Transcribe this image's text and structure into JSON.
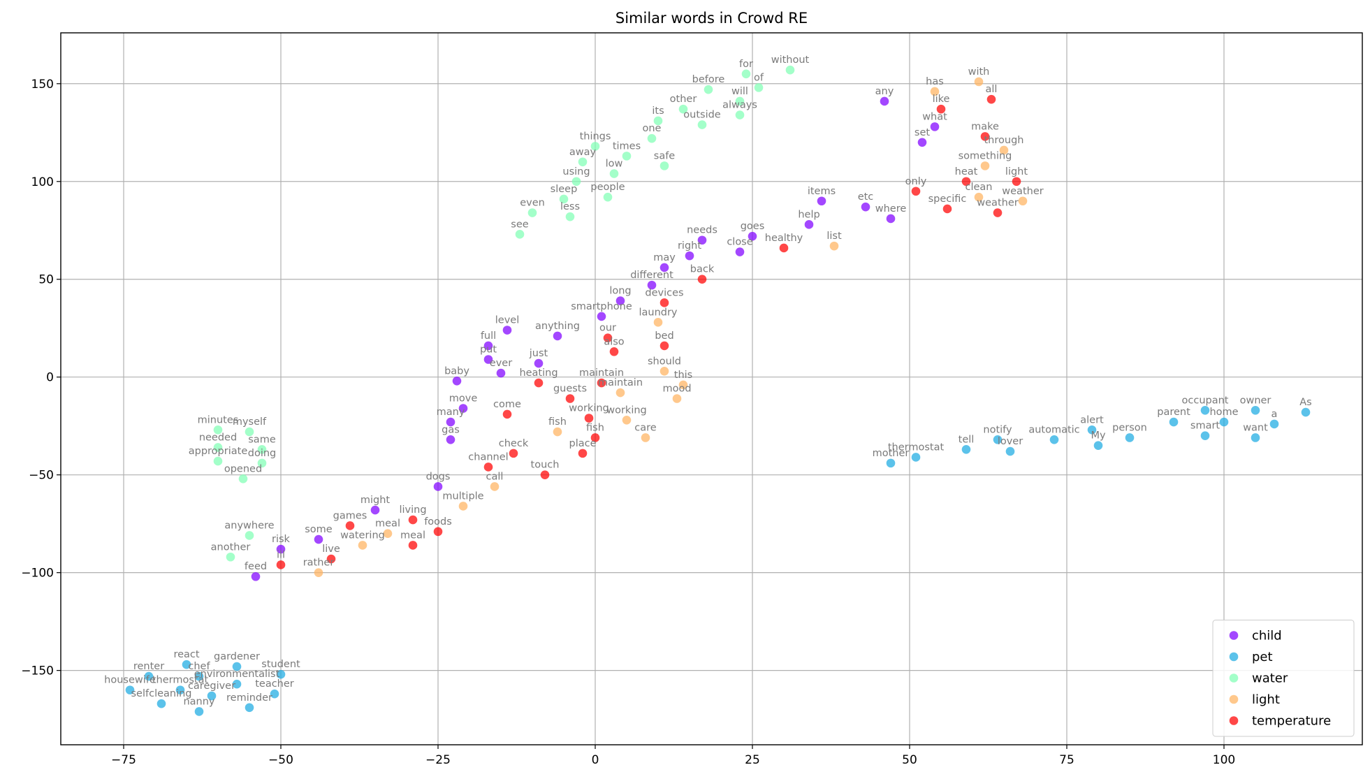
{
  "chart_data": {
    "type": "scatter",
    "title": "Similar words in Crowd RE",
    "xlabel": "",
    "ylabel": "",
    "xlim": [
      -85,
      122
    ],
    "ylim": [
      -188,
      176
    ],
    "xticks": [
      -75,
      -50,
      -25,
      0,
      25,
      50,
      75,
      100
    ],
    "xtick_labels": [
      "−75",
      "−50",
      "−25",
      "0",
      "25",
      "50",
      "75",
      "100"
    ],
    "yticks": [
      -150,
      -100,
      -50,
      0,
      50,
      100,
      150
    ],
    "ytick_labels": [
      "−150",
      "−100",
      "−50",
      "0",
      "50",
      "100",
      "150"
    ],
    "grid": true,
    "legend_position": "lower-right",
    "series": [
      {
        "name": "child",
        "color": "#8000ff",
        "points": [
          {
            "label": "any",
            "x": 46,
            "y": 141
          },
          {
            "label": "what",
            "x": 54,
            "y": 128
          },
          {
            "label": "set",
            "x": 52,
            "y": 120
          },
          {
            "label": "items",
            "x": 36,
            "y": 90
          },
          {
            "label": "etc",
            "x": 43,
            "y": 87
          },
          {
            "label": "where",
            "x": 47,
            "y": 81
          },
          {
            "label": "help",
            "x": 34,
            "y": 78
          },
          {
            "label": "goes",
            "x": 25,
            "y": 72
          },
          {
            "label": "needs",
            "x": 17,
            "y": 70
          },
          {
            "label": "close",
            "x": 23,
            "y": 64
          },
          {
            "label": "right",
            "x": 15,
            "y": 62
          },
          {
            "label": "may",
            "x": 11,
            "y": 56
          },
          {
            "label": "different",
            "x": 9,
            "y": 47
          },
          {
            "label": "long",
            "x": 4,
            "y": 39
          },
          {
            "label": "smartphone",
            "x": 1,
            "y": 31
          },
          {
            "label": "level",
            "x": -14,
            "y": 24
          },
          {
            "label": "anything",
            "x": -6,
            "y": 21
          },
          {
            "label": "full",
            "x": -17,
            "y": 16
          },
          {
            "label": "put",
            "x": -17,
            "y": 9
          },
          {
            "label": "just",
            "x": -9,
            "y": 7
          },
          {
            "label": "ever",
            "x": -15,
            "y": 2
          },
          {
            "label": "baby",
            "x": -22,
            "y": -2
          },
          {
            "label": "move",
            "x": -21,
            "y": -16
          },
          {
            "label": "many",
            "x": -23,
            "y": -23
          },
          {
            "label": "gas",
            "x": -23,
            "y": -32
          },
          {
            "label": "dogs",
            "x": -25,
            "y": -56
          },
          {
            "label": "might",
            "x": -35,
            "y": -68
          },
          {
            "label": "some",
            "x": -44,
            "y": -83
          },
          {
            "label": "risk",
            "x": -50,
            "y": -88
          },
          {
            "label": "feed",
            "x": -54,
            "y": -102
          }
        ]
      },
      {
        "name": "pet",
        "color": "#1cabe2",
        "points": [
          {
            "label": "occupant",
            "x": 97,
            "y": -17
          },
          {
            "label": "owner",
            "x": 105,
            "y": -17
          },
          {
            "label": "As",
            "x": 113,
            "y": -18
          },
          {
            "label": "parent",
            "x": 92,
            "y": -23
          },
          {
            "label": "home",
            "x": 100,
            "y": -23
          },
          {
            "label": "a",
            "x": 108,
            "y": -24
          },
          {
            "label": "alert",
            "x": 79,
            "y": -27
          },
          {
            "label": "smart",
            "x": 97,
            "y": -30
          },
          {
            "label": "want",
            "x": 105,
            "y": -31
          },
          {
            "label": "person",
            "x": 85,
            "y": -31
          },
          {
            "label": "automatic",
            "x": 73,
            "y": -32
          },
          {
            "label": "notify",
            "x": 64,
            "y": -32
          },
          {
            "label": "My",
            "x": 80,
            "y": -35
          },
          {
            "label": "lover",
            "x": 66,
            "y": -38
          },
          {
            "label": "tell",
            "x": 59,
            "y": -37
          },
          {
            "label": "thermostat",
            "x": 51,
            "y": -41
          },
          {
            "label": "mother",
            "x": 47,
            "y": -44
          },
          {
            "label": "react",
            "x": -65,
            "y": -147
          },
          {
            "label": "gardener",
            "x": -57,
            "y": -148
          },
          {
            "label": "student",
            "x": -50,
            "y": -152
          },
          {
            "label": "renter",
            "x": -71,
            "y": -153
          },
          {
            "label": "chef",
            "x": -63,
            "y": -153
          },
          {
            "label": "environmentalist",
            "x": -57,
            "y": -157
          },
          {
            "label": "thermostat",
            "x": -66,
            "y": -160
          },
          {
            "label": "housewife",
            "x": -74,
            "y": -160
          },
          {
            "label": "teacher",
            "x": -51,
            "y": -162
          },
          {
            "label": "caregiver",
            "x": -61,
            "y": -163
          },
          {
            "label": "selfcleaning",
            "x": -69,
            "y": -167
          },
          {
            "label": "reminder",
            "x": -55,
            "y": -169
          },
          {
            "label": "nanny",
            "x": -63,
            "y": -171
          }
        ]
      },
      {
        "name": "water",
        "color": "#80ffb4",
        "points": [
          {
            "label": "for",
            "x": 24,
            "y": 155
          },
          {
            "label": "without",
            "x": 31,
            "y": 157
          },
          {
            "label": "of",
            "x": 26,
            "y": 148
          },
          {
            "label": "before",
            "x": 18,
            "y": 147
          },
          {
            "label": "will",
            "x": 23,
            "y": 141
          },
          {
            "label": "other",
            "x": 14,
            "y": 137
          },
          {
            "label": "always",
            "x": 23,
            "y": 134
          },
          {
            "label": "its",
            "x": 10,
            "y": 131
          },
          {
            "label": "outside",
            "x": 17,
            "y": 129
          },
          {
            "label": "one",
            "x": 9,
            "y": 122
          },
          {
            "label": "things",
            "x": 0,
            "y": 118
          },
          {
            "label": "times",
            "x": 5,
            "y": 113
          },
          {
            "label": "away",
            "x": -2,
            "y": 110
          },
          {
            "label": "safe",
            "x": 11,
            "y": 108
          },
          {
            "label": "low",
            "x": 3,
            "y": 104
          },
          {
            "label": "using",
            "x": -3,
            "y": 100
          },
          {
            "label": "people",
            "x": 2,
            "y": 92
          },
          {
            "label": "sleep",
            "x": -5,
            "y": 91
          },
          {
            "label": "even",
            "x": -10,
            "y": 84
          },
          {
            "label": "less",
            "x": -4,
            "y": 82
          },
          {
            "label": "see",
            "x": -12,
            "y": 73
          },
          {
            "label": "minutes",
            "x": -60,
            "y": -27
          },
          {
            "label": "myself",
            "x": -55,
            "y": -28
          },
          {
            "label": "needed",
            "x": -60,
            "y": -36
          },
          {
            "label": "same",
            "x": -53,
            "y": -37
          },
          {
            "label": "appropriate",
            "x": -60,
            "y": -43
          },
          {
            "label": "doing",
            "x": -53,
            "y": -44
          },
          {
            "label": "opened",
            "x": -56,
            "y": -52
          },
          {
            "label": "anywhere",
            "x": -55,
            "y": -81
          },
          {
            "label": "another",
            "x": -58,
            "y": -92
          }
        ]
      },
      {
        "name": "light",
        "color": "#ffb360",
        "points": [
          {
            "label": "has",
            "x": 54,
            "y": 146
          },
          {
            "label": "with",
            "x": 61,
            "y": 151
          },
          {
            "label": "through",
            "x": 65,
            "y": 116
          },
          {
            "label": "something",
            "x": 62,
            "y": 108
          },
          {
            "label": "clean",
            "x": 61,
            "y": 92
          },
          {
            "label": "weather",
            "x": 68,
            "y": 90
          },
          {
            "label": "list",
            "x": 38,
            "y": 67
          },
          {
            "label": "laundry",
            "x": 10,
            "y": 28
          },
          {
            "label": "should",
            "x": 11,
            "y": 3
          },
          {
            "label": "this",
            "x": 14,
            "y": -4
          },
          {
            "label": "maintain",
            "x": 4,
            "y": -8
          },
          {
            "label": "mood",
            "x": 13,
            "y": -11
          },
          {
            "label": "working",
            "x": 5,
            "y": -22
          },
          {
            "label": "fish",
            "x": -6,
            "y": -28
          },
          {
            "label": "care",
            "x": 8,
            "y": -31
          },
          {
            "label": "call",
            "x": -16,
            "y": -56
          },
          {
            "label": "multiple",
            "x": -21,
            "y": -66
          },
          {
            "label": "meal",
            "x": -33,
            "y": -80
          },
          {
            "label": "watering",
            "x": -37,
            "y": -86
          },
          {
            "label": "rather",
            "x": -44,
            "y": -100
          }
        ]
      },
      {
        "name": "temperature",
        "color": "#ff0000",
        "points": [
          {
            "label": "all",
            "x": 63,
            "y": 142
          },
          {
            "label": "like",
            "x": 55,
            "y": 137
          },
          {
            "label": "make",
            "x": 62,
            "y": 123
          },
          {
            "label": "heat",
            "x": 59,
            "y": 100
          },
          {
            "label": "light",
            "x": 67,
            "y": 100
          },
          {
            "label": "only",
            "x": 51,
            "y": 95
          },
          {
            "label": "specific",
            "x": 56,
            "y": 86
          },
          {
            "label": "weather",
            "x": 64,
            "y": 84
          },
          {
            "label": "healthy",
            "x": 30,
            "y": 66
          },
          {
            "label": "back",
            "x": 17,
            "y": 50
          },
          {
            "label": "devices",
            "x": 11,
            "y": 38
          },
          {
            "label": "our",
            "x": 2,
            "y": 20
          },
          {
            "label": "bed",
            "x": 11,
            "y": 16
          },
          {
            "label": "also",
            "x": 3,
            "y": 13
          },
          {
            "label": "heating",
            "x": -9,
            "y": -3
          },
          {
            "label": "maintain",
            "x": 1,
            "y": -3
          },
          {
            "label": "guests",
            "x": -4,
            "y": -11
          },
          {
            "label": "come",
            "x": -14,
            "y": -19
          },
          {
            "label": "working",
            "x": -1,
            "y": -21
          },
          {
            "label": "fish",
            "x": 0,
            "y": -31
          },
          {
            "label": "check",
            "x": -13,
            "y": -39
          },
          {
            "label": "place",
            "x": -2,
            "y": -39
          },
          {
            "label": "channel",
            "x": -17,
            "y": -46
          },
          {
            "label": "touch",
            "x": -8,
            "y": -50
          },
          {
            "label": "games",
            "x": -39,
            "y": -76
          },
          {
            "label": "living",
            "x": -29,
            "y": -73
          },
          {
            "label": "foods",
            "x": -25,
            "y": -79
          },
          {
            "label": "meal",
            "x": -29,
            "y": -86
          },
          {
            "label": "live",
            "x": -42,
            "y": -93
          },
          {
            "label": "ill",
            "x": -50,
            "y": -96
          }
        ]
      }
    ]
  }
}
